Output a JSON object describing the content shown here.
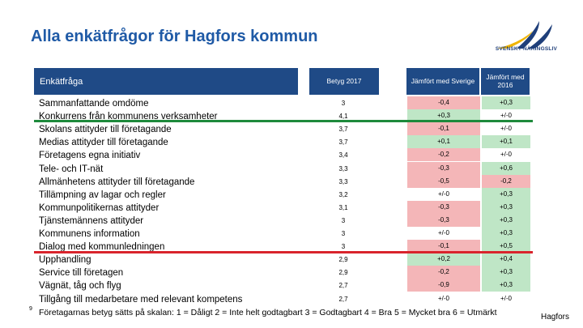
{
  "title": "Alla enkätfrågor för Hagfors kommun",
  "logo": {
    "text": "SVENSKT NÄRINGSLIV"
  },
  "header": {
    "question": "Enkätfråga",
    "betyg": "Betyg 2017",
    "sverige": "Jämfört med Sverige",
    "y2016": "Jämfört med 2016"
  },
  "colors": {
    "red": "#f4b6b8",
    "green": "#bfe6c6",
    "neutral": "#ffffff"
  },
  "rows": [
    {
      "q": "Sammanfattande omdöme",
      "b": "3",
      "s": "-0,4",
      "s_color": "red",
      "y": "+0,3",
      "y_color": "green"
    },
    {
      "q": "Konkurrens från kommunens verksamheter",
      "b": "4,1",
      "s": "+0,3",
      "s_color": "green",
      "y": "+/-0",
      "y_color": "neutral"
    },
    {
      "q": "Skolans attityder till företagande",
      "b": "3,7",
      "s": "-0,1",
      "s_color": "red",
      "y": "+/-0",
      "y_color": "neutral"
    },
    {
      "q": "Medias attityder till företagande",
      "b": "3,7",
      "s": "+0,1",
      "s_color": "green",
      "y": "+0,1",
      "y_color": "green"
    },
    {
      "q": "Företagens egna initiativ",
      "b": "3,4",
      "s": "-0,2",
      "s_color": "red",
      "y": "+/-0",
      "y_color": "neutral"
    },
    {
      "q": "Tele- och IT-nät",
      "b": "3,3",
      "s": "-0,3",
      "s_color": "red",
      "y": "+0,6",
      "y_color": "green"
    },
    {
      "q": "Allmänhetens attityder till företagande",
      "b": "3,3",
      "s": "-0,5",
      "s_color": "red",
      "y": "-0,2",
      "y_color": "red"
    },
    {
      "q": "Tillämpning av lagar och regler",
      "b": "3,2",
      "s": "+/-0",
      "s_color": "neutral",
      "y": "+0,3",
      "y_color": "green"
    },
    {
      "q": "Kommunpolitikernas attityder",
      "b": "3,1",
      "s": "-0,3",
      "s_color": "red",
      "y": "+0,3",
      "y_color": "green"
    },
    {
      "q": "Tjänstemännens attityder",
      "b": "3",
      "s": "-0,3",
      "s_color": "red",
      "y": "+0,3",
      "y_color": "green"
    },
    {
      "q": "Kommunens information",
      "b": "3",
      "s": "+/-0",
      "s_color": "neutral",
      "y": "+0,3",
      "y_color": "green"
    },
    {
      "q": "Dialog med kommunledningen",
      "b": "3",
      "s": "-0,1",
      "s_color": "red",
      "y": "+0,5",
      "y_color": "green"
    },
    {
      "q": "Upphandling",
      "b": "2,9",
      "s": "+0,2",
      "s_color": "green",
      "y": "+0,4",
      "y_color": "green"
    },
    {
      "q": "Service till företagen",
      "b": "2,9",
      "s": "-0,2",
      "s_color": "red",
      "y": "+0,3",
      "y_color": "green"
    },
    {
      "q": "Vägnät, tåg och flyg",
      "b": "2,7",
      "s": "-0,9",
      "s_color": "red",
      "y": "+0,3",
      "y_color": "green"
    },
    {
      "q": "Tillgång till medarbetare med relevant kompetens",
      "b": "2,7",
      "s": "+/-0",
      "s_color": "neutral",
      "y": "+/-0",
      "y_color": "neutral"
    }
  ],
  "footnote": {
    "num": "9",
    "text": "Företagarnas betyg sätts på skalan: 1 = Dåligt 2 = Inte helt godtagbart 3 = Godtagbart 4 = Bra 5 = Mycket bra 6 = Utmärkt"
  },
  "brand": "Hagfors"
}
